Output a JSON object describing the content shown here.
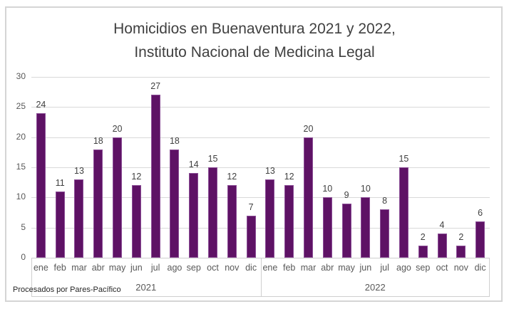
{
  "title": {
    "line1": "Homicidios en Buenaventura 2021 y 2022,",
    "line2": "Instituto Nacional de Medicina Legal"
  },
  "footer": {
    "text": "Procesados por Pares-Pacífico"
  },
  "chart_data": {
    "type": "bar",
    "title": "Homicidios en Buenaventura 2021 y 2022, Instituto Nacional de Medicina Legal",
    "xlabel": "",
    "ylabel": "",
    "ylim": [
      0,
      30
    ],
    "yticks": [
      0,
      5,
      10,
      15,
      20,
      25,
      30
    ],
    "grid": true,
    "data_labels": true,
    "legend": false,
    "bar_color": "#5E1265",
    "groups": [
      {
        "label": "2021",
        "categories": [
          "ene",
          "feb",
          "mar",
          "abr",
          "may",
          "jun",
          "jul",
          "ago",
          "sep",
          "oct",
          "nov",
          "dic"
        ],
        "values": [
          24,
          11,
          13,
          18,
          20,
          12,
          27,
          18,
          14,
          15,
          12,
          7
        ]
      },
      {
        "label": "2022",
        "categories": [
          "ene",
          "feb",
          "mar",
          "abr",
          "may",
          "jun",
          "jul",
          "ago",
          "sep",
          "oct",
          "nov",
          "dic"
        ],
        "values": [
          13,
          12,
          20,
          10,
          9,
          10,
          8,
          15,
          2,
          4,
          2,
          6
        ]
      }
    ]
  }
}
